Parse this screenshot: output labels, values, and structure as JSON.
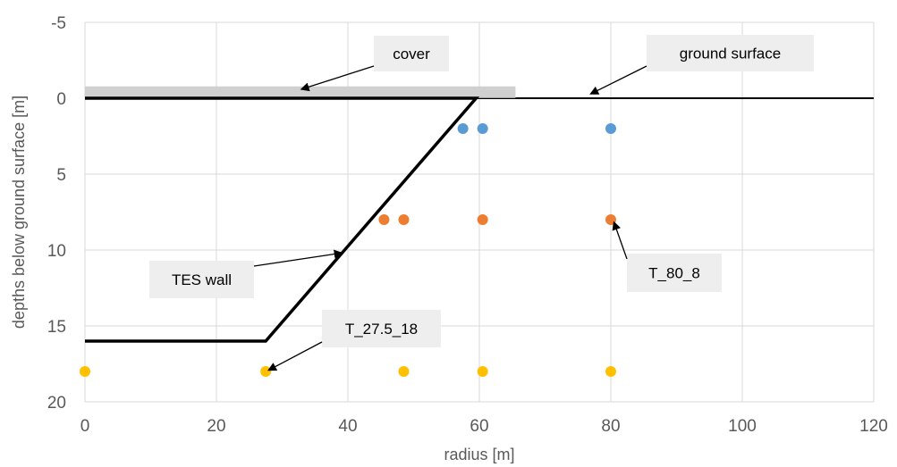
{
  "chart_data": {
    "type": "scatter",
    "title": "",
    "xlabel": "radius [m]",
    "ylabel": "depths below ground surface [m]",
    "xlim": [
      0,
      120
    ],
    "ylim": [
      -5,
      20
    ],
    "y_inverted": true,
    "x_ticks": [
      0,
      20,
      40,
      60,
      80,
      100,
      120
    ],
    "y_ticks": [
      -5,
      0,
      5,
      10,
      15,
      20
    ],
    "grid": "major, both axes",
    "legend": "none",
    "series": [
      {
        "color": "#5B9BD5",
        "points": [
          [
            57.5,
            2
          ],
          [
            60.5,
            2
          ],
          [
            80,
            2
          ]
        ]
      },
      {
        "color": "#ED7D31",
        "points": [
          [
            45.5,
            8
          ],
          [
            48.5,
            8
          ],
          [
            60.5,
            8
          ],
          [
            80,
            8
          ]
        ]
      },
      {
        "color": "#FFC000",
        "points": [
          [
            0,
            18
          ],
          [
            27.5,
            18
          ],
          [
            48.5,
            18
          ],
          [
            60.5,
            18
          ],
          [
            80,
            18
          ]
        ]
      }
    ],
    "lines": [
      {
        "role": "ground surface",
        "color": "#000000",
        "points": [
          [
            0,
            0
          ],
          [
            120,
            0
          ]
        ]
      },
      {
        "role": "cover",
        "color": "#D0D0D0",
        "points": [
          [
            0,
            -0.4
          ],
          [
            65.5,
            -0.4
          ]
        ]
      },
      {
        "role": "TES wall",
        "color": "#000000",
        "points": [
          [
            0,
            16
          ],
          [
            27.5,
            16
          ],
          [
            59.5,
            0
          ],
          [
            0,
            0
          ]
        ]
      }
    ],
    "annotations": [
      {
        "text": "cover",
        "arrow_to": [
          33,
          -0.6
        ]
      },
      {
        "text": "ground surface",
        "arrow_to": [
          77,
          -0.3
        ]
      },
      {
        "text": "TES wall",
        "arrow_to": [
          39,
          10.2
        ]
      },
      {
        "text": "T_80_8",
        "arrow_to": [
          80.5,
          8.2
        ]
      },
      {
        "text": "T_27.5_18",
        "arrow_to": [
          28,
          17.9
        ]
      }
    ]
  }
}
